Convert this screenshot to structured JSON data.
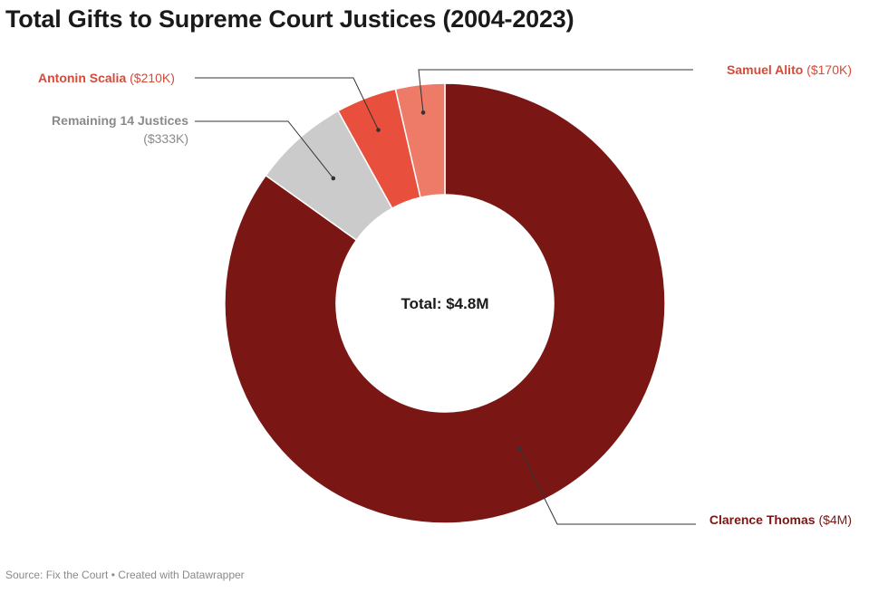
{
  "chart_data": {
    "type": "donut",
    "title": "Total Gifts to Supreme Court Justices (2004-2023)",
    "center_label": "Total: $4.8M",
    "slices": [
      {
        "name": "Clarence Thomas",
        "value_label": "($4M)",
        "value": 4.0,
        "color": "#7a1714",
        "label_color": "#7a1714"
      },
      {
        "name": "Remaining 14 Justices",
        "value_label": "($333K)",
        "value": 0.333,
        "color": "#cbcbcb",
        "label_color": "#8a8a8a"
      },
      {
        "name": "Antonin Scalia",
        "value_label": "($210K)",
        "value": 0.21,
        "color": "#e8503d",
        "label_color": "#d64a38"
      },
      {
        "name": "Samuel Alito",
        "value_label": "($170K)",
        "value": 0.17,
        "color": "#ee7a68",
        "label_color": "#d64a38"
      }
    ],
    "total": 4.8
  },
  "footer": {
    "source": "Source: Fix the Court",
    "separator": "•",
    "credit": "Created with Datawrapper"
  }
}
